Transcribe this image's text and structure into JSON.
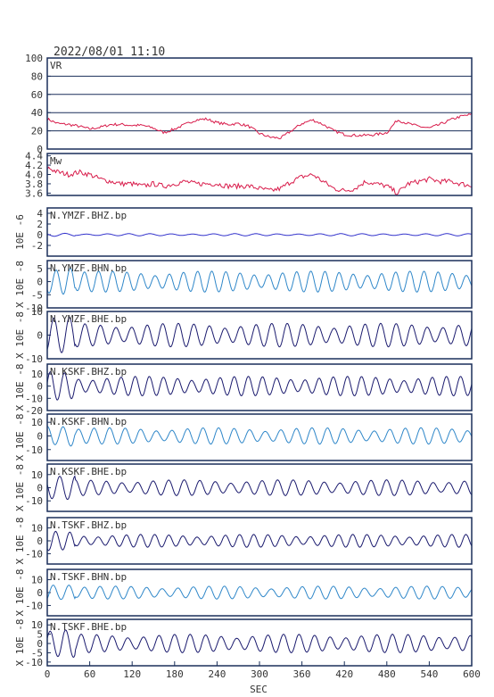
{
  "header": {
    "datetime": "2022/08/01  11:10"
  },
  "x_axis": {
    "label": "SEC",
    "ticks": [
      0,
      60,
      120,
      180,
      240,
      300,
      360,
      420,
      480,
      540,
      600
    ],
    "range": [
      0,
      600
    ]
  },
  "colors": {
    "frame": "#1a2f5a",
    "vr": "#d81b4a",
    "mw": "#d81b4a",
    "dark_trace": "#1a1a6e",
    "light_trace": "#2f87c9",
    "ymzf_bhz": "#3333cc"
  },
  "chart_data": [
    {
      "type": "line",
      "id": "vr",
      "label": "VR",
      "ylim": [
        0,
        100
      ],
      "yticks": [
        "0",
        "20",
        "40",
        "60",
        "80",
        "100"
      ],
      "grid": true,
      "x": [
        0,
        15,
        30,
        45,
        60,
        75,
        90,
        105,
        120,
        135,
        150,
        165,
        180,
        195,
        210,
        225,
        240,
        255,
        270,
        285,
        300,
        315,
        330,
        345,
        360,
        375,
        390,
        405,
        420,
        435,
        450,
        465,
        480,
        495,
        510,
        525,
        540,
        555,
        570,
        585,
        600
      ],
      "y": [
        33,
        28,
        27,
        25,
        22,
        24,
        27,
        27,
        26,
        26,
        23,
        18,
        22,
        27,
        32,
        33,
        29,
        27,
        28,
        25,
        17,
        13,
        12,
        20,
        28,
        32,
        27,
        20,
        16,
        15,
        15,
        16,
        18,
        32,
        28,
        25,
        23,
        27,
        32,
        36,
        38
      ]
    },
    {
      "type": "line",
      "id": "mw",
      "label": "Mw",
      "ylim": [
        3.55,
        4.45
      ],
      "yticks": [
        "3.6",
        "3.8",
        "4.0",
        "4.2",
        "4.4"
      ],
      "grid": false,
      "x": [
        0,
        15,
        30,
        45,
        60,
        75,
        90,
        105,
        120,
        135,
        150,
        165,
        180,
        195,
        210,
        225,
        240,
        255,
        270,
        285,
        300,
        315,
        330,
        345,
        360,
        375,
        390,
        405,
        420,
        435,
        450,
        465,
        480,
        495,
        510,
        525,
        540,
        555,
        570,
        585,
        600
      ],
      "y": [
        4.15,
        4.05,
        4.0,
        4.05,
        4.0,
        3.9,
        3.85,
        3.8,
        3.8,
        3.75,
        3.8,
        3.75,
        3.8,
        3.85,
        3.8,
        3.8,
        3.8,
        3.75,
        3.75,
        3.75,
        3.7,
        3.65,
        3.7,
        3.85,
        3.95,
        4.0,
        3.85,
        3.7,
        3.65,
        3.7,
        3.85,
        3.8,
        3.75,
        3.6,
        3.8,
        3.85,
        3.9,
        3.85,
        3.85,
        3.8,
        3.75
      ]
    },
    {
      "type": "line",
      "id": "ymzf_bhz",
      "label": "N.YMZF.BHZ.bp",
      "ylabel": "10E -6",
      "ylim": [
        -4,
        5
      ],
      "yticks": [
        "-2",
        "0",
        "2",
        "4"
      ],
      "amplitude": 0.2,
      "period_sec": 30,
      "color": "ymzf_bhz"
    },
    {
      "type": "line",
      "id": "ymzf_bhn",
      "label": "N.YMZF.BHN.bp",
      "ylabel": "X 10E -8",
      "ylim": [
        -10,
        8
      ],
      "yticks": [
        "-10",
        "-5",
        "0",
        "5"
      ],
      "amplitude": 4,
      "period_sec": 20,
      "color": "light_trace"
    },
    {
      "type": "line",
      "id": "ymzf_bhe",
      "label": "N.YMZF.BHE.bp",
      "ylabel": "X 10E -8",
      "ylim": [
        -10,
        10
      ],
      "yticks": [
        "-10",
        "0",
        "10"
      ],
      "amplitude": 5,
      "period_sec": 22,
      "color": "dark_trace"
    },
    {
      "type": "line",
      "id": "kskf_bhz",
      "label": "N.KSKF.BHZ.bp",
      "ylabel": "X 10E -8",
      "ylim": [
        -20,
        18
      ],
      "yticks": [
        "-20",
        "-10",
        "0",
        "10"
      ],
      "amplitude": 8,
      "period_sec": 20,
      "color": "dark_trace"
    },
    {
      "type": "line",
      "id": "kskf_bhn",
      "label": "N.KSKF.BHN.bp",
      "ylabel": "X 10E -8",
      "ylim": [
        -18,
        16
      ],
      "yticks": [
        "-10",
        "0",
        "10"
      ],
      "amplitude": 6,
      "period_sec": 22,
      "color": "light_trace"
    },
    {
      "type": "line",
      "id": "kskf_bhe",
      "label": "N.KSKF.BHE.bp",
      "ylabel": "X 10E -8",
      "ylim": [
        -18,
        18
      ],
      "yticks": [
        "-10",
        "0",
        "10"
      ],
      "amplitude": 6,
      "period_sec": 22,
      "color": "dark_trace"
    },
    {
      "type": "line",
      "id": "tskf_bhz",
      "label": "N.TSKF.BHZ.bp",
      "ylabel": "X 10E -8",
      "ylim": [
        -18,
        18
      ],
      "yticks": [
        "-10",
        "0",
        "10"
      ],
      "amplitude": 5,
      "period_sec": 20,
      "color": "dark_trace"
    },
    {
      "type": "line",
      "id": "tskf_bhn",
      "label": "N.TSKF.BHN.bp",
      "ylabel": "X 10E -8",
      "ylim": [
        -18,
        18
      ],
      "yticks": [
        "-10",
        "0",
        "10"
      ],
      "amplitude": 5,
      "period_sec": 22,
      "color": "light_trace"
    },
    {
      "type": "line",
      "id": "tskf_bhe",
      "label": "N.TSKF.BHE.bp",
      "ylabel": "X 10E -8",
      "ylim": [
        -12,
        13
      ],
      "yticks": [
        "-10",
        "-5",
        "0",
        "5",
        "10"
      ],
      "amplitude": 5,
      "period_sec": 22,
      "color": "dark_trace"
    }
  ]
}
